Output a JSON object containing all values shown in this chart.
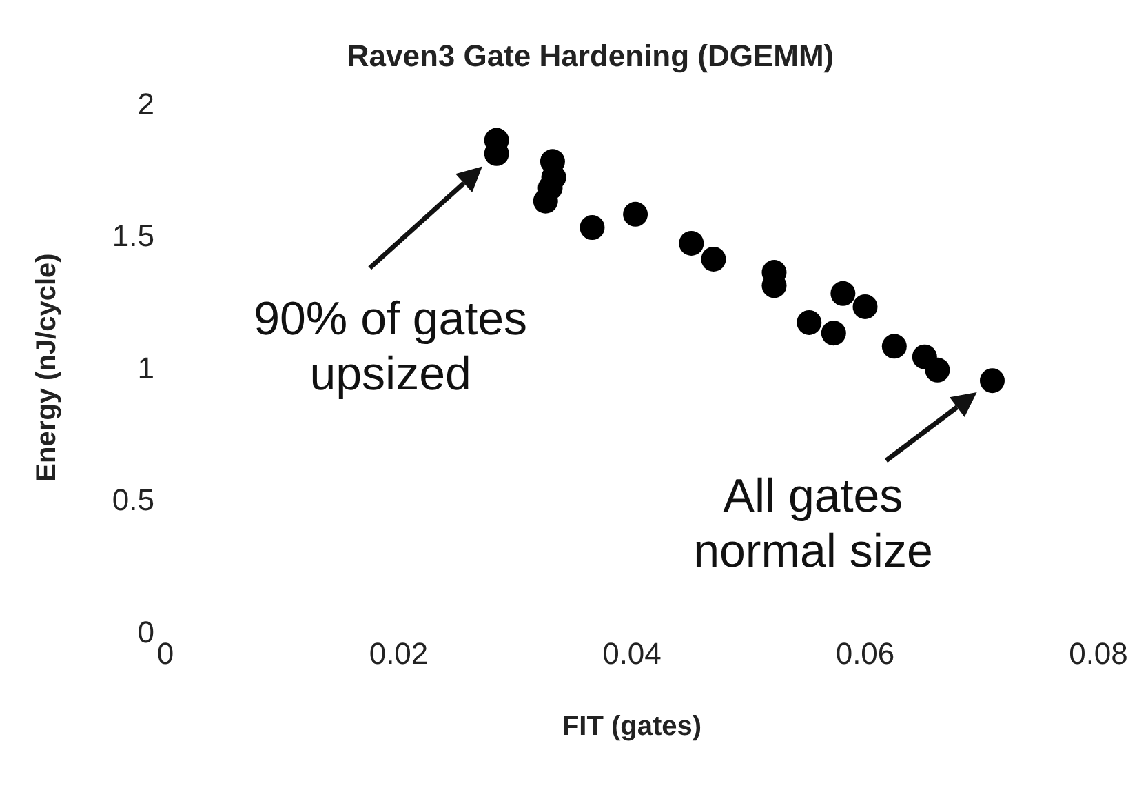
{
  "chart_data": {
    "type": "scatter",
    "title": "Raven3 Gate Hardening (DGEMM)",
    "xlabel": "FIT (gates)",
    "ylabel": "Energy (nJ/cycle)",
    "x": [
      0.0284,
      0.0284,
      0.0332,
      0.0333,
      0.033,
      0.0326,
      0.0366,
      0.0403,
      0.0451,
      0.047,
      0.0522,
      0.0522,
      0.0552,
      0.0573,
      0.0581,
      0.06,
      0.0625,
      0.0651,
      0.0662,
      0.0709
    ],
    "values": [
      1.86,
      1.81,
      1.78,
      1.72,
      1.68,
      1.63,
      1.53,
      1.58,
      1.47,
      1.41,
      1.36,
      1.31,
      1.17,
      1.13,
      1.28,
      1.23,
      1.08,
      1.04,
      0.99,
      0.95
    ],
    "color": "#000000",
    "marker": "circle",
    "xlim": [
      0,
      0.08
    ],
    "xticks": [
      0,
      0.02,
      0.04,
      0.06,
      0.08
    ],
    "ylim": [
      0,
      2
    ],
    "yticks": [
      0,
      0.5,
      1,
      1.5,
      2
    ],
    "grid": false,
    "legend": false,
    "annotations": [
      {
        "text": "90% of gates\nupsized",
        "x": 0.0284,
        "y": 1.81
      },
      {
        "text": "All gates\nnormal size",
        "x": 0.0709,
        "y": 0.95
      }
    ]
  }
}
